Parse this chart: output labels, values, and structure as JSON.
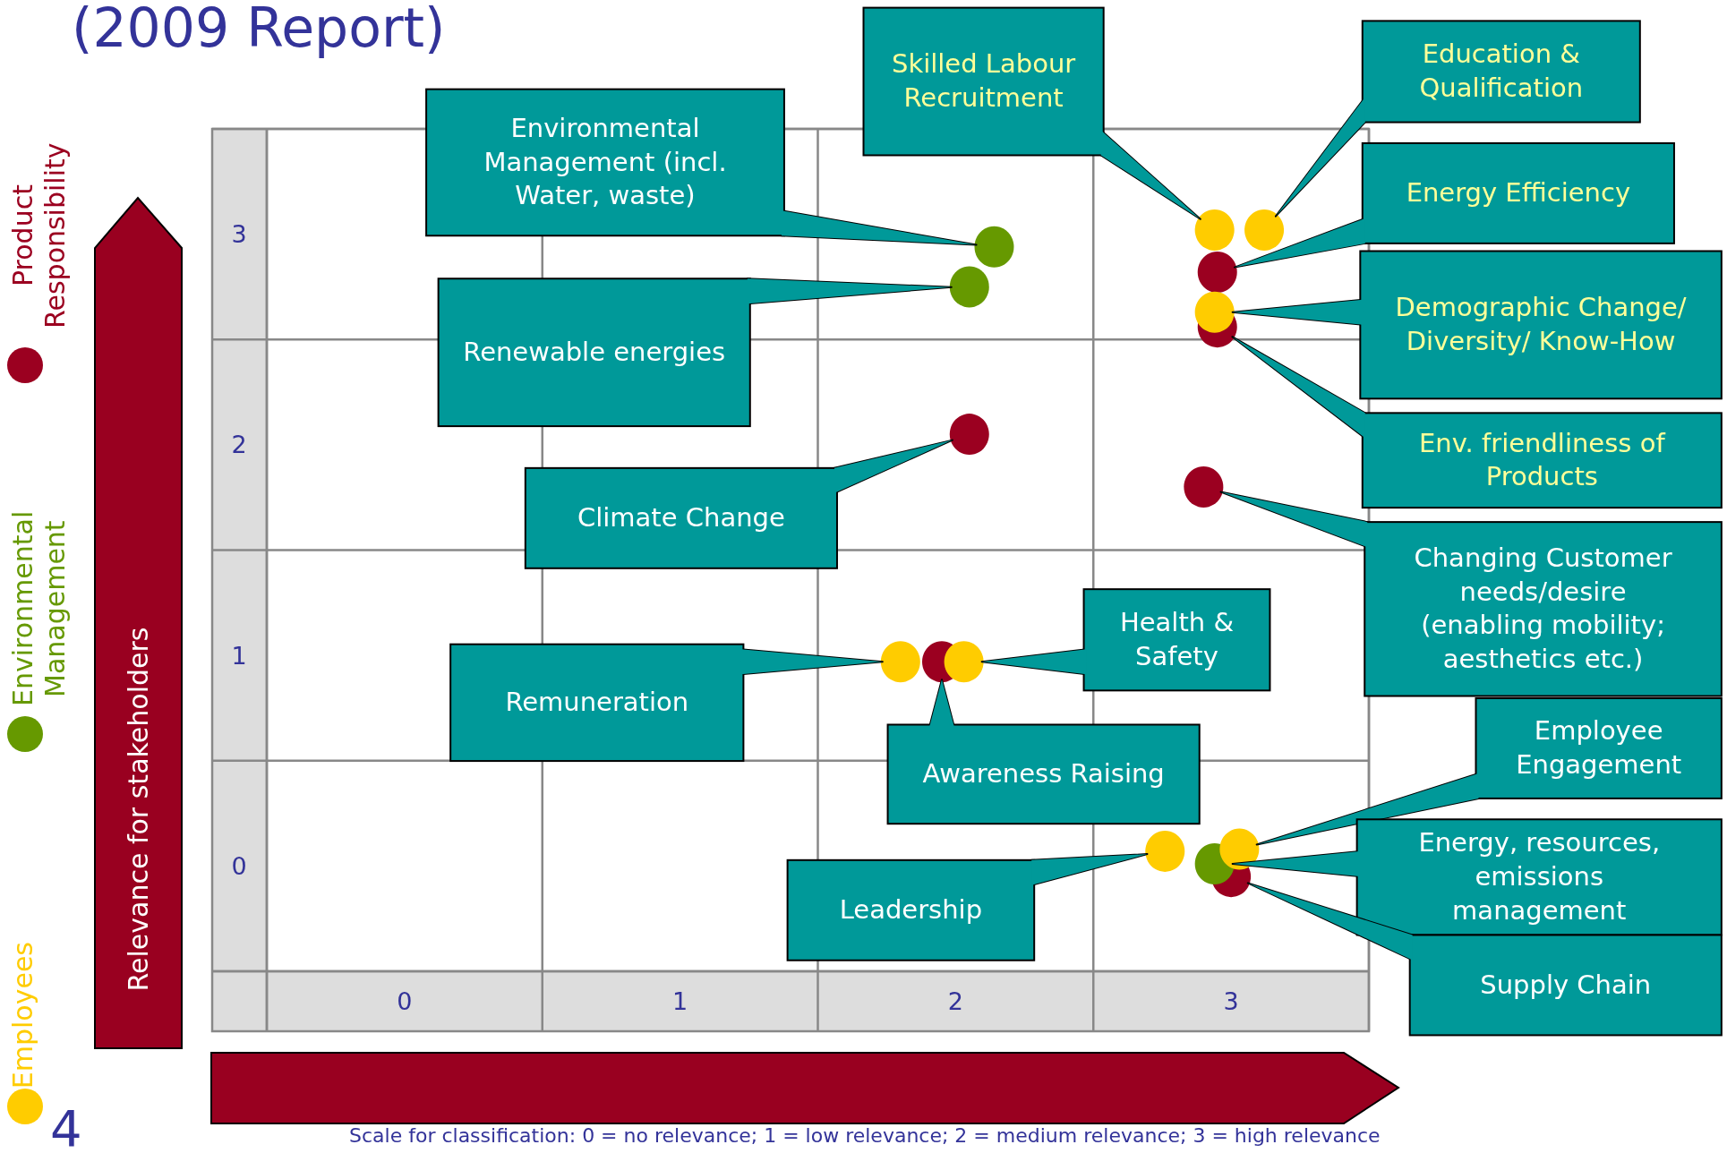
{
  "chart_data": {
    "type": "scatter",
    "title": "(2009 Report)",
    "ylabel": "Relevance for stakeholders",
    "xlim": [
      -0.5,
      3.5
    ],
    "ylim": [
      -0.5,
      3.5
    ],
    "xticks": [
      {
        "value": -0.5,
        "label": null
      },
      0,
      {
        "value": 0.5,
        "label": null
      },
      1,
      {
        "value": 1.5,
        "label": null
      },
      2,
      {
        "value": 2.5,
        "label": null
      },
      3,
      {
        "value": 3.5,
        "label": null
      }
    ],
    "yticks": [
      {
        "value": -0.5,
        "label": null
      },
      0,
      {
        "value": 0.5,
        "label": null
      },
      1,
      {
        "value": 1.5,
        "label": null
      },
      2,
      {
        "value": 2.5,
        "label": null
      },
      3,
      {
        "value": 3.5,
        "label": null
      }
    ],
    "grid": true,
    "legend": "left",
    "marker": "circle",
    "series": [
      {
        "name": "Product Responsibility",
        "color": "#9b0020",
        "x": [
          2.95,
          2.95,
          2.05,
          2.9,
          1.95,
          3.0
        ],
        "values": [
          2.82,
          2.56,
          2.05,
          1.8,
          0.97,
          -0.05
        ]
      },
      {
        "name": "Environmental Management",
        "color": "#669900",
        "x": [
          2.14,
          2.05,
          2.94
        ],
        "values": [
          2.94,
          2.75,
          0.01
        ]
      },
      {
        "name": "Employees",
        "color": "#ffcc00",
        "x": [
          2.94,
          3.12,
          2.94,
          1.8,
          2.03,
          2.76,
          3.03
        ],
        "values": [
          3.02,
          3.02,
          2.63,
          0.97,
          0.97,
          0.07,
          0.08
        ]
      }
    ],
    "annotations": [
      "Environmental Management (incl. Water, waste)",
      "Renewable energies",
      "Skilled Labour Recruitment",
      "Education & Qualification",
      "Energy Efficiency",
      "Demographic Change/ Diversity/ Know-How",
      "Env. friendliness of Products",
      "Climate Change",
      "Changing Customer needs/desire (enabling mobility; aesthetics etc.)",
      "Remuneration",
      "Awareness Raising",
      "Health & Safety",
      "Leadership",
      "Employee Engagement",
      "Energy, resources, emissions management",
      "Supply Chain",
      "Scale for classification:  0 = no relevance;  1 = low relevance;  2 = medium relevance;  3 = high relevance",
      "4"
    ]
  }
}
